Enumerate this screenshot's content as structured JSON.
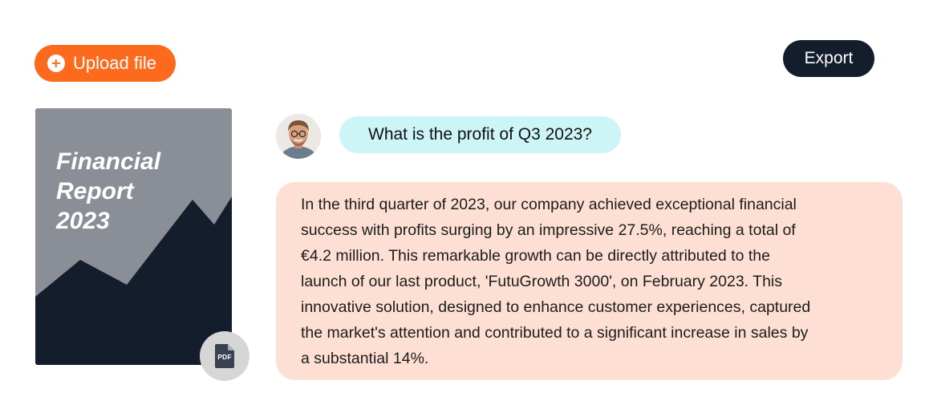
{
  "toolbar": {
    "upload_label": "Upload file",
    "upload_icon": "plus-circle-icon",
    "export_label": "Export"
  },
  "document": {
    "title_lines": [
      "Financial",
      "Report",
      "2023"
    ],
    "badge_label": "PDF",
    "badge_icon": "pdf-file-icon"
  },
  "chat": {
    "question": "What is the profit of Q3 2023?",
    "answer_lines": [
      "In the third quarter of 2023, our company achieved exceptional financial",
      "success with profits surging by an impressive 27.5%, reaching a total of",
      "€4.2 million. This remarkable growth can be directly attributed to the",
      "launch of our last product, 'FutuGrowth 3000', on February 2023. This",
      "innovative solution, designed to enhance customer experiences, captured",
      "the market's attention and contributed to a significant increase in sales by",
      "a substantial 14%."
    ]
  },
  "colors": {
    "upload_button": "#fb6a1d",
    "export_button": "#141d2b",
    "question_bubble": "#cdf4f6",
    "answer_bubble": "#fde0d3",
    "cover_light": "#8a8e96",
    "cover_dark": "#141d2b"
  }
}
